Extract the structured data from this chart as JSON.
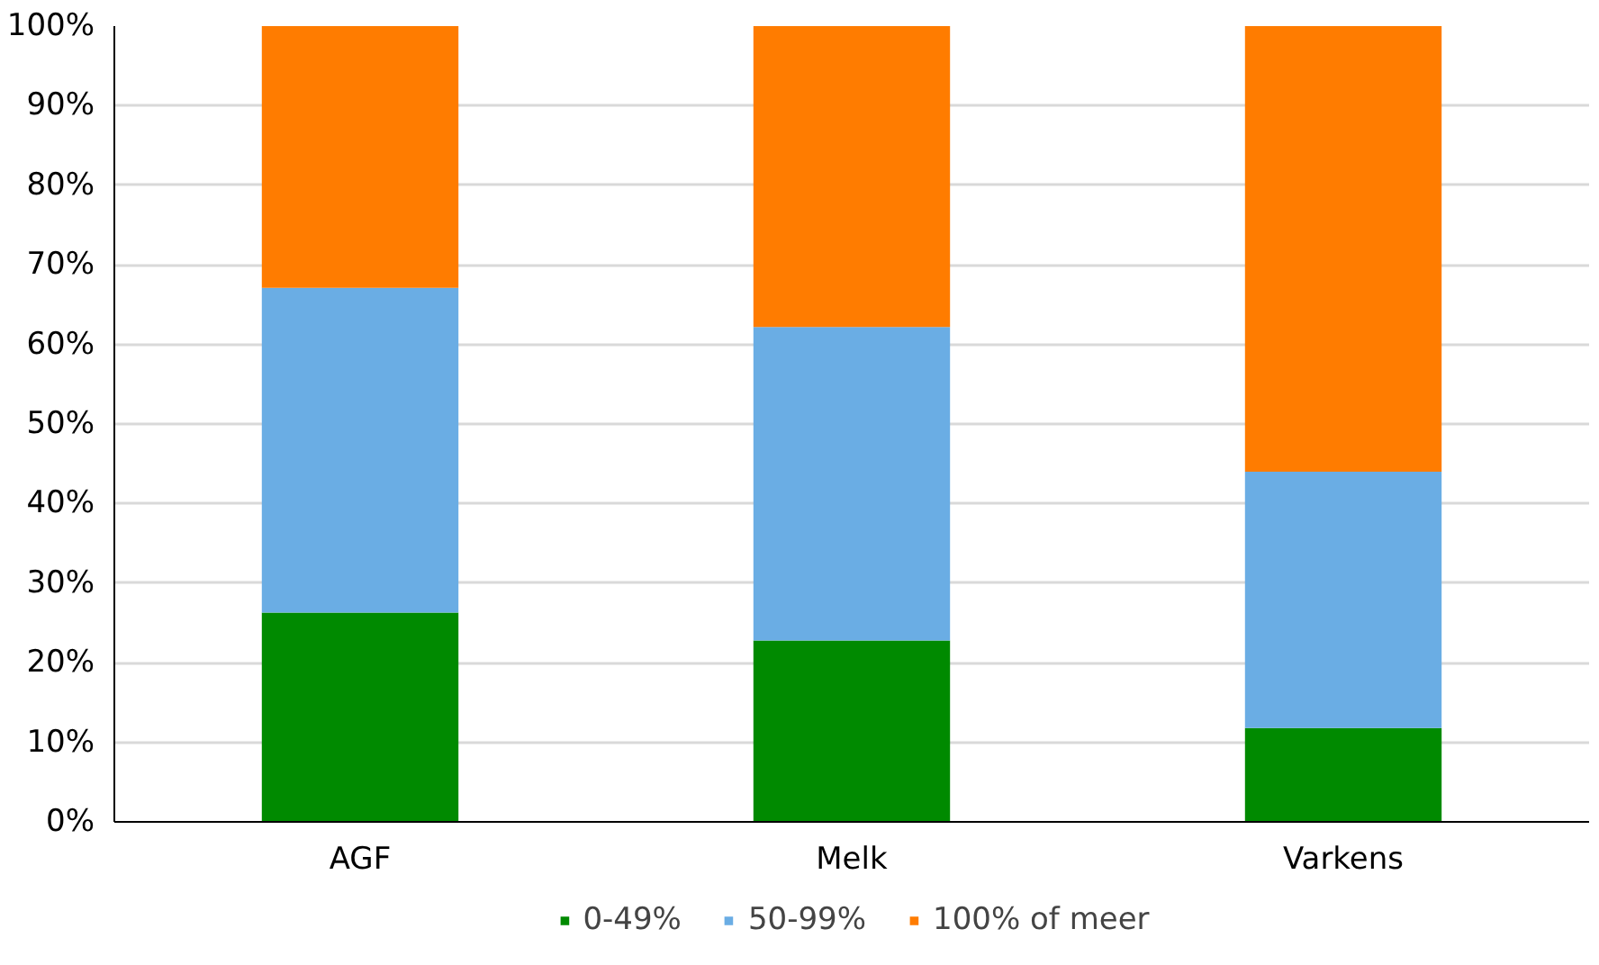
{
  "chart_data": {
    "type": "bar",
    "stacked": true,
    "categories": [
      "AGF",
      "Melk",
      "Varkens"
    ],
    "series": [
      {
        "name": "0-49%",
        "color": "#008a00",
        "values": [
          26.3,
          22.8,
          11.8
        ]
      },
      {
        "name": "50-99%",
        "color": "#6aade4",
        "values": [
          40.8,
          39.4,
          32.2
        ]
      },
      {
        "name": "100% of meer",
        "color": "#ff7c00",
        "values": [
          32.9,
          37.8,
          56.0
        ]
      }
    ],
    "ylim": [
      0,
      100
    ],
    "yticks": [
      {
        "value": 0,
        "label": "0%"
      },
      {
        "value": 10,
        "label": "10%"
      },
      {
        "value": 20,
        "label": "20%"
      },
      {
        "value": 30,
        "label": "30%"
      },
      {
        "value": 40,
        "label": "40%"
      },
      {
        "value": 50,
        "label": "50%"
      },
      {
        "value": 60,
        "label": "60%"
      },
      {
        "value": 70,
        "label": "70%"
      },
      {
        "value": 80,
        "label": "80%"
      },
      {
        "value": 90,
        "label": "90%"
      },
      {
        "value": 100,
        "label": "100%"
      }
    ],
    "grid": "y",
    "legend": "bottom"
  }
}
